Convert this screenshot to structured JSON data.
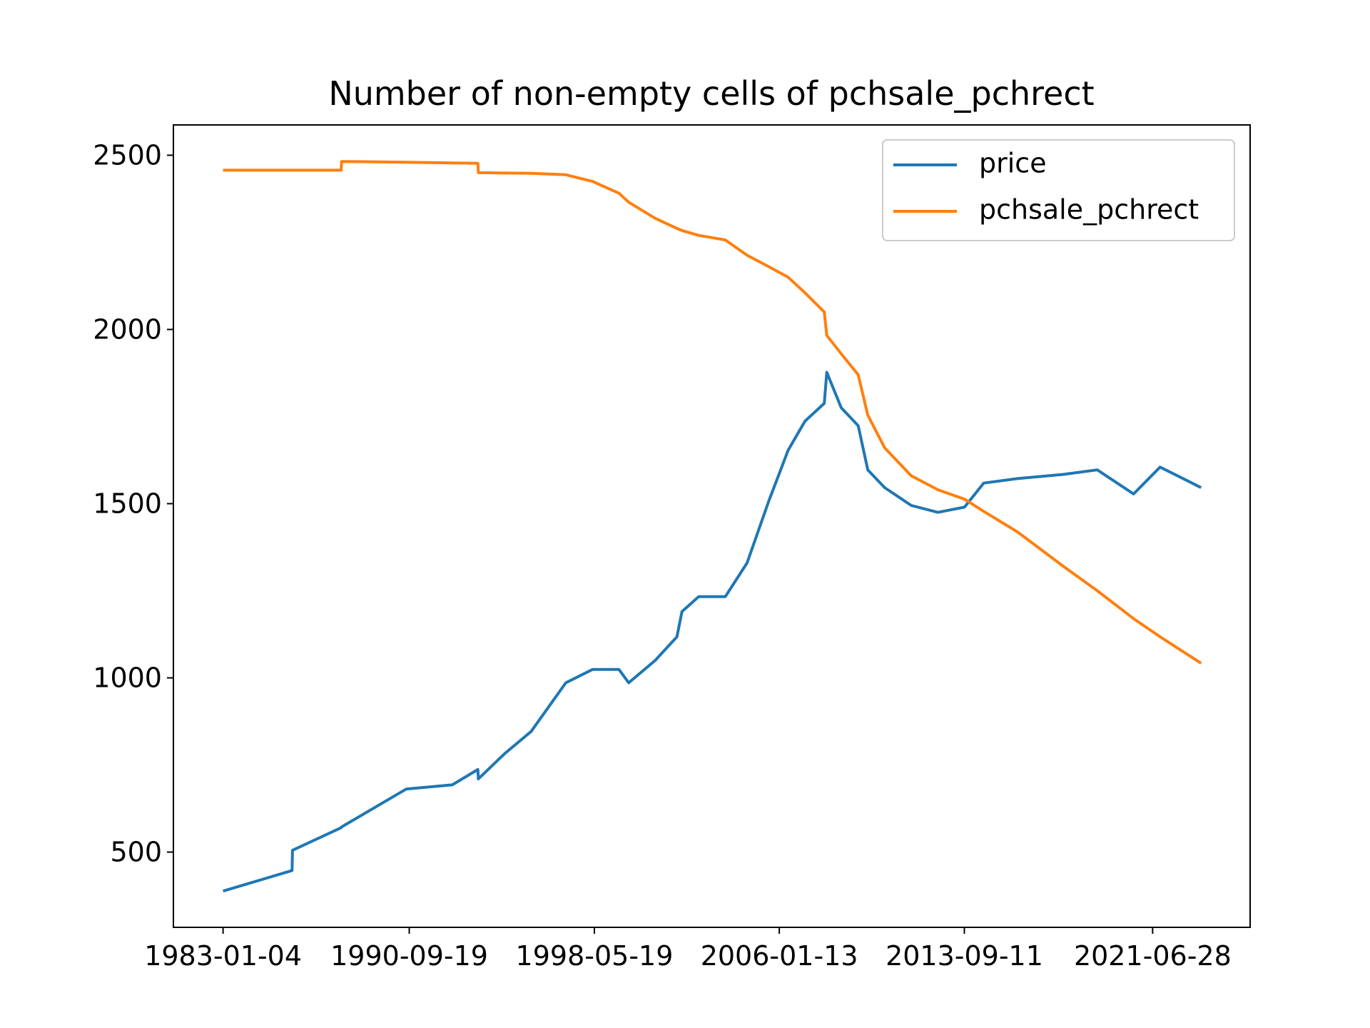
{
  "chart_data": {
    "type": "line",
    "title": "Number of non-empty cells of pchsale_pchrect",
    "x": [
      "1983-01-04",
      "1985-11-12",
      "1985-11-19",
      "1987-11-24",
      "1987-12-01",
      "1990-08-07",
      "1992-07-01",
      "1993-07-23",
      "1993-07-30",
      "1994-08-29",
      "1995-10-05",
      "1997-03-14",
      "1998-04-20",
      "1999-05-27",
      "1999-10-20",
      "2000-11-24",
      "2001-10-19",
      "2002-01-02",
      "2002-09-13",
      "2003-10-20",
      "2004-09-13",
      "2005-08-08",
      "2006-05-26",
      "2007-02-06",
      "2007-11-24",
      "2008-01-01",
      "2008-08-07",
      "2009-04-20",
      "2009-09-13",
      "2010-05-26",
      "2011-07-01",
      "2012-08-07",
      "2013-09-13",
      "2014-07-01",
      "2015-11-24",
      "2017-10-19",
      "2019-03-14",
      "2020-09-13",
      "2021-10-19",
      "2023-07-01"
    ],
    "series": [
      {
        "name": "price",
        "color": "#1f77b4",
        "values": [
          388,
          447,
          505,
          570,
          572,
          681,
          693,
          737,
          710,
          782,
          846,
          986,
          1024,
          1024,
          986,
          1050,
          1118,
          1190,
          1233,
          1233,
          1330,
          1508,
          1653,
          1737,
          1788,
          1877,
          1775,
          1724,
          1597,
          1546,
          1495,
          1475,
          1490,
          1559,
          1572,
          1584,
          1597,
          1528,
          1605,
          1546
        ]
      },
      {
        "name": "pchsale_pchrect",
        "color": "#ff7f0e",
        "values": [
          2457,
          2457,
          2457,
          2457,
          2482,
          2480,
          2478,
          2477,
          2450,
          2449,
          2448,
          2444,
          2425,
          2391,
          2365,
          2319,
          2290,
          2284,
          2270,
          2257,
          2213,
          2180,
          2150,
          2105,
          2050,
          1983,
          1930,
          1870,
          1754,
          1660,
          1580,
          1540,
          1513,
          1478,
          1419,
          1320,
          1250,
          1170,
          1118,
          1042
        ]
      }
    ],
    "xlim": [
      "1980-12-14",
      "2025-07-11"
    ],
    "xticks": [
      "1983-01-04",
      "1990-09-19",
      "1998-05-19",
      "2006-01-13",
      "2013-09-11",
      "2021-06-28"
    ],
    "ylim": [
      284,
      2587
    ],
    "yticks": [
      500,
      1000,
      1500,
      2000,
      2500
    ],
    "legend": "upper right"
  }
}
